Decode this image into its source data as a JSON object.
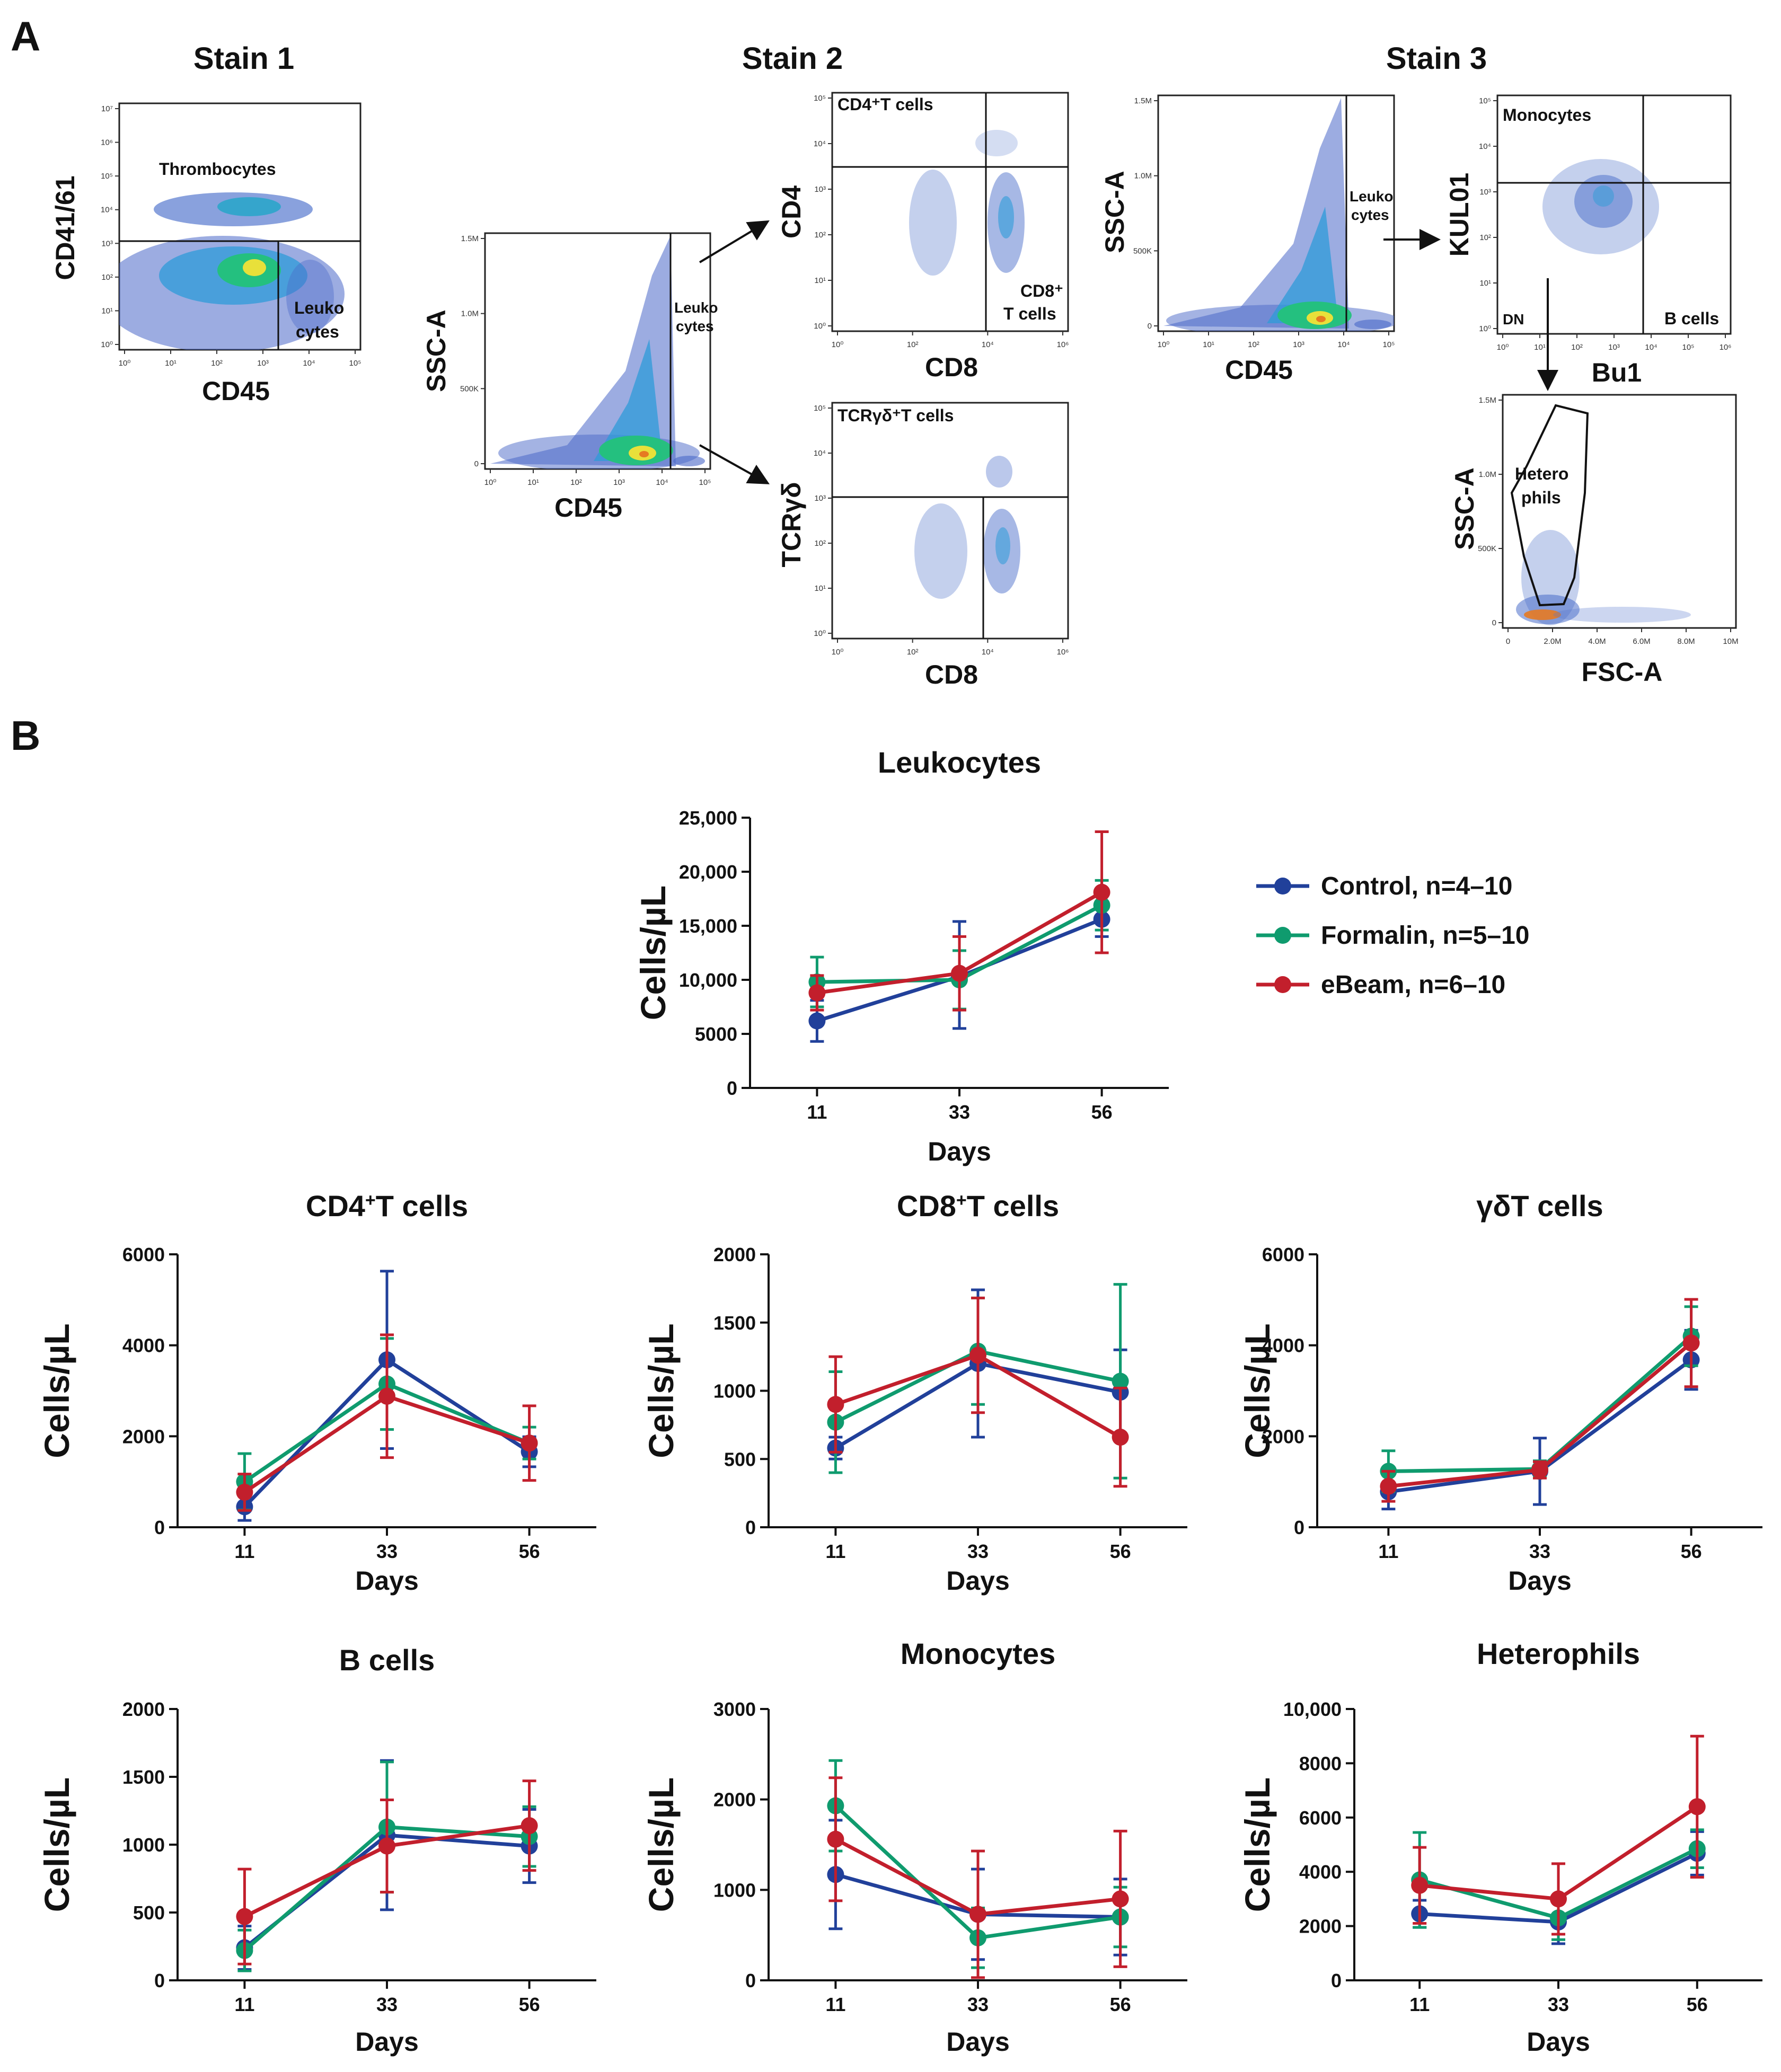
{
  "panel_labels": {
    "a": "A",
    "b": "B"
  },
  "stains": {
    "stain1": "Stain 1",
    "stain2": "Stain 2",
    "stain3": "Stain 3"
  },
  "flow": {
    "p1": {
      "ylabel": "CD41/61",
      "xlabel": "CD45",
      "gate_top": "Thrombocytes",
      "gate_br_1": "Leuko",
      "gate_br_2": "cytes",
      "xticks": [
        "10⁰",
        "10¹",
        "10²",
        "10³",
        "10⁴",
        "10⁵"
      ],
      "yticks": [
        "10⁰",
        "10¹",
        "10²",
        "10³",
        "10⁴",
        "10⁵",
        "10⁶",
        "10⁷"
      ]
    },
    "p2": {
      "ylabel": "SSC-A",
      "xlabel": "CD45",
      "gate_1": "Leuko",
      "gate_2": "cytes",
      "xticks": [
        "10⁰",
        "10¹",
        "10²",
        "10³",
        "10⁴",
        "10⁵"
      ],
      "yticks": [
        "0",
        "500K",
        "1.0M",
        "1.5M"
      ]
    },
    "p3": {
      "ylabel": "CD4",
      "xlabel": "CD8",
      "gate_tl": "CD4⁺T cells",
      "gate_br_1": "CD8⁺",
      "gate_br_2": "T cells",
      "xticks": [
        "10⁰",
        "10²",
        "10⁴",
        "10⁶"
      ],
      "yticks": [
        "10⁰",
        "10¹",
        "10²",
        "10³",
        "10⁴",
        "10⁵"
      ]
    },
    "p4": {
      "ylabel": "TCRγδ",
      "xlabel": "CD8",
      "gate_tl": "TCRγδ⁺T cells",
      "xticks": [
        "10⁰",
        "10²",
        "10⁴",
        "10⁶"
      ],
      "yticks": [
        "10⁰",
        "10¹",
        "10²",
        "10³",
        "10⁴",
        "10⁵"
      ]
    },
    "p5": {
      "ylabel": "SSC-A",
      "xlabel": "CD45",
      "gate_1": "Leuko",
      "gate_2": "cytes",
      "xticks": [
        "10⁰",
        "10¹",
        "10²",
        "10³",
        "10⁴",
        "10⁵"
      ],
      "yticks": [
        "0",
        "500K",
        "1.0M",
        "1.5M"
      ]
    },
    "p6": {
      "ylabel": "KUL01",
      "xlabel": "Bu1",
      "gate_tl": "Monocytes",
      "gate_bl": "DN",
      "gate_br": "B cells",
      "xticks": [
        "10⁰",
        "10¹",
        "10²",
        "10³",
        "10⁴",
        "10⁵",
        "10⁶"
      ],
      "yticks": [
        "10⁰",
        "10¹",
        "10²",
        "10³",
        "10⁴",
        "10⁵"
      ]
    },
    "p7": {
      "ylabel": "SSC-A",
      "xlabel": "FSC-A",
      "gate_1": "Hetero",
      "gate_2": "phils",
      "xticks": [
        "0",
        "2.0M",
        "4.0M",
        "6.0M",
        "8.0M",
        "10M"
      ],
      "yticks": [
        "0",
        "500K",
        "1.0M",
        "1.5M"
      ]
    }
  },
  "legend": [
    {
      "name": "Control, n=4–10",
      "color": "#21409a"
    },
    {
      "name": "Formalin, n=5–10",
      "color": "#0f9b6e"
    },
    {
      "name": "eBeam, n=6–10",
      "color": "#c21f2c"
    }
  ],
  "chart_data": [
    {
      "id": "leuko",
      "type": "line",
      "title": "Leukocytes",
      "title_sup": "",
      "xlabel": "Days",
      "ylabel": "Cells/µL",
      "categories": [
        "11",
        "33",
        "56"
      ],
      "ylim": [
        0,
        25000
      ],
      "yticks": [
        0,
        5000,
        10000,
        15000,
        20000,
        25000
      ],
      "ytick_labels": [
        "0",
        "5000",
        "10,000",
        "15,000",
        "20,000",
        "25,000"
      ],
      "series": [
        {
          "name": "Control",
          "color": "#21409a",
          "values": [
            6200,
            10300,
            15600
          ],
          "err_low": [
            1900,
            4800,
            1600
          ],
          "err_high": [
            1900,
            5100,
            1600
          ]
        },
        {
          "name": "Formalin",
          "color": "#0f9b6e",
          "values": [
            9800,
            10000,
            16900
          ],
          "err_low": [
            2300,
            2700,
            2300
          ],
          "err_high": [
            2300,
            2700,
            2300
          ]
        },
        {
          "name": "eBeam",
          "color": "#c21f2c",
          "values": [
            8800,
            10600,
            18100
          ],
          "err_low": [
            1600,
            3400,
            5600
          ],
          "err_high": [
            1600,
            3400,
            5600
          ]
        }
      ]
    },
    {
      "id": "cd4",
      "type": "line",
      "title": "CD4",
      "title_sup": "+",
      "title_rest": "T cells",
      "xlabel": "Days",
      "ylabel": "Cells/µL",
      "categories": [
        "11",
        "33",
        "56"
      ],
      "ylim": [
        0,
        6000
      ],
      "yticks": [
        0,
        2000,
        4000,
        6000
      ],
      "ytick_labels": [
        "0",
        "2000",
        "4000",
        "6000"
      ],
      "series": [
        {
          "name": "Control",
          "color": "#21409a",
          "values": [
            450,
            3680,
            1660
          ],
          "err_low": [
            300,
            1950,
            330
          ],
          "err_high": [
            300,
            1950,
            330
          ]
        },
        {
          "name": "Formalin",
          "color": "#0f9b6e",
          "values": [
            1000,
            3150,
            1850
          ],
          "err_low": [
            620,
            1000,
            350
          ],
          "err_high": [
            620,
            1000,
            350
          ]
        },
        {
          "name": "eBeam",
          "color": "#c21f2c",
          "values": [
            770,
            2880,
            1850
          ],
          "err_low": [
            400,
            1350,
            820
          ],
          "err_high": [
            400,
            1350,
            820
          ]
        }
      ]
    },
    {
      "id": "cd8",
      "type": "line",
      "title": "CD8",
      "title_sup": "+",
      "title_rest": "T cells",
      "xlabel": "Days",
      "ylabel": "Cells/µL",
      "categories": [
        "11",
        "33",
        "56"
      ],
      "ylim": [
        0,
        2000
      ],
      "yticks": [
        0,
        500,
        1000,
        1500,
        2000
      ],
      "ytick_labels": [
        "0",
        "500",
        "1000",
        "1500",
        "2000"
      ],
      "series": [
        {
          "name": "Control",
          "color": "#21409a",
          "values": [
            580,
            1200,
            990
          ],
          "err_low": [
            80,
            540,
            310
          ],
          "err_high": [
            80,
            540,
            310
          ]
        },
        {
          "name": "Formalin",
          "color": "#0f9b6e",
          "values": [
            770,
            1290,
            1070
          ],
          "err_low": [
            370,
            390,
            710
          ],
          "err_high": [
            370,
            390,
            710
          ]
        },
        {
          "name": "eBeam",
          "color": "#c21f2c",
          "values": [
            900,
            1260,
            660
          ],
          "err_low": [
            350,
            420,
            360
          ],
          "err_high": [
            350,
            420,
            360
          ]
        }
      ]
    },
    {
      "id": "gd",
      "type": "line",
      "title": "γδT cells",
      "title_sup": "",
      "xlabel": "Days",
      "ylabel": "Cells/µL",
      "categories": [
        "11",
        "33",
        "56"
      ],
      "ylim": [
        0,
        6000
      ],
      "yticks": [
        0,
        2000,
        4000,
        6000
      ],
      "ytick_labels": [
        "0",
        "2000",
        "4000",
        "6000"
      ],
      "series": [
        {
          "name": "Control",
          "color": "#21409a",
          "values": [
            780,
            1230,
            3680
          ],
          "err_low": [
            380,
            730,
            650
          ],
          "err_high": [
            380,
            730,
            650
          ]
        },
        {
          "name": "Formalin",
          "color": "#0f9b6e",
          "values": [
            1230,
            1280,
            4200
          ],
          "err_low": [
            450,
            180,
            650
          ],
          "err_high": [
            450,
            180,
            650
          ]
        },
        {
          "name": "eBeam",
          "color": "#c21f2c",
          "values": [
            900,
            1260,
            4050
          ],
          "err_low": [
            330,
            180,
            960
          ],
          "err_high": [
            330,
            180,
            960
          ]
        }
      ]
    },
    {
      "id": "bcells",
      "type": "line",
      "title": "B cells",
      "title_sup": "",
      "xlabel": "Days",
      "ylabel": "Cells/µL",
      "categories": [
        "11",
        "33",
        "56"
      ],
      "ylim": [
        0,
        2000
      ],
      "yticks": [
        0,
        500,
        1000,
        1500,
        2000
      ],
      "ytick_labels": [
        "0",
        "500",
        "1000",
        "1500",
        "2000"
      ],
      "series": [
        {
          "name": "Control",
          "color": "#21409a",
          "values": [
            240,
            1070,
            990
          ],
          "err_low": [
            160,
            550,
            270
          ],
          "err_high": [
            160,
            550,
            270
          ]
        },
        {
          "name": "Formalin",
          "color": "#0f9b6e",
          "values": [
            220,
            1130,
            1060
          ],
          "err_low": [
            150,
            480,
            220
          ],
          "err_high": [
            150,
            480,
            220
          ]
        },
        {
          "name": "eBeam",
          "color": "#c21f2c",
          "values": [
            470,
            990,
            1140
          ],
          "err_low": [
            350,
            340,
            330
          ],
          "err_high": [
            350,
            340,
            330
          ]
        }
      ]
    },
    {
      "id": "mono",
      "type": "line",
      "title": "Monocytes",
      "title_sup": "",
      "xlabel": "Days",
      "ylabel": "Cells/µL",
      "categories": [
        "11",
        "33",
        "56"
      ],
      "ylim": [
        0,
        3000
      ],
      "yticks": [
        0,
        1000,
        2000,
        3000
      ],
      "ytick_labels": [
        "0",
        "1000",
        "2000",
        "3000"
      ],
      "series": [
        {
          "name": "Control",
          "color": "#21409a",
          "values": [
            1170,
            730,
            700
          ],
          "err_low": [
            600,
            500,
            420
          ],
          "err_high": [
            600,
            500,
            420
          ]
        },
        {
          "name": "Formalin",
          "color": "#0f9b6e",
          "values": [
            1930,
            470,
            700
          ],
          "err_low": [
            500,
            330,
            330
          ],
          "err_high": [
            500,
            330,
            330
          ]
        },
        {
          "name": "eBeam",
          "color": "#c21f2c",
          "values": [
            1560,
            730,
            900
          ],
          "err_low": [
            680,
            700,
            750
          ],
          "err_high": [
            680,
            700,
            750
          ]
        }
      ]
    },
    {
      "id": "hetero",
      "type": "line",
      "title": "Heterophils",
      "title_sup": "",
      "xlabel": "Days",
      "ylabel": "Cells/µL",
      "categories": [
        "11",
        "33",
        "56"
      ],
      "ylim": [
        0,
        10000
      ],
      "yticks": [
        0,
        2000,
        4000,
        6000,
        8000,
        10000
      ],
      "ytick_labels": [
        "0",
        "2000",
        "4000",
        "6000",
        "8000",
        "10,000"
      ],
      "series": [
        {
          "name": "Control",
          "color": "#21409a",
          "values": [
            2450,
            2150,
            4680
          ],
          "err_low": [
            500,
            800,
            800
          ],
          "err_high": [
            500,
            800,
            800
          ]
        },
        {
          "name": "Formalin",
          "color": "#0f9b6e",
          "values": [
            3700,
            2300,
            4850
          ],
          "err_low": [
            1750,
            800,
            700
          ],
          "err_high": [
            1750,
            800,
            700
          ]
        },
        {
          "name": "eBeam",
          "color": "#c21f2c",
          "values": [
            3500,
            3000,
            6400
          ],
          "err_low": [
            1400,
            1300,
            2600
          ],
          "err_high": [
            1400,
            1300,
            2600
          ]
        }
      ]
    }
  ]
}
